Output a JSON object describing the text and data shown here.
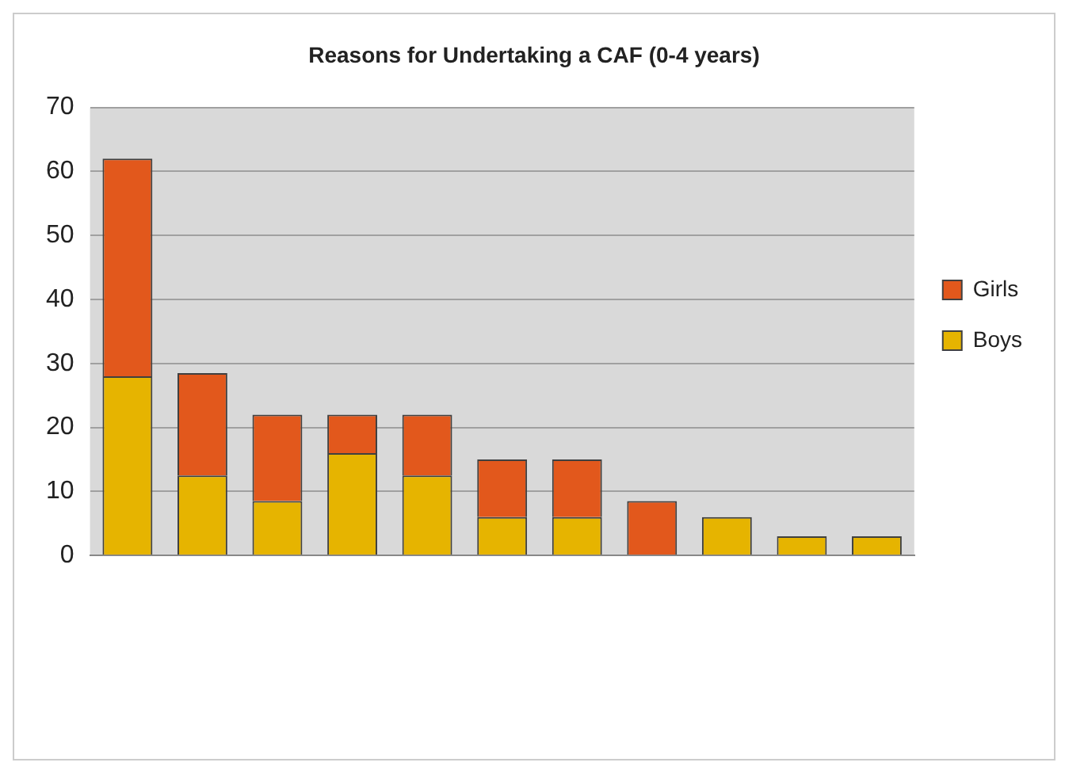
{
  "chart_data": {
    "type": "bar",
    "title": "Reasons for Undertaking a CAF (0-4 years)",
    "stacked": true,
    "categories": [
      null,
      null,
      null,
      null,
      null,
      null,
      null,
      null,
      null,
      null,
      null
    ],
    "series": [
      {
        "name": "Boys",
        "color": "#e6b400",
        "values": [
          28,
          12.5,
          8.5,
          16,
          12.5,
          6,
          6,
          0,
          6,
          3,
          3
        ]
      },
      {
        "name": "Girls",
        "color": "#e2581c",
        "values": [
          34,
          16,
          13.5,
          6,
          9.5,
          9,
          9,
          8.5,
          0,
          0,
          0
        ]
      }
    ],
    "ylim": [
      0,
      70
    ],
    "yticks": [
      0,
      10,
      20,
      30,
      40,
      50,
      60,
      70
    ],
    "grid": "y",
    "legend": "right"
  }
}
